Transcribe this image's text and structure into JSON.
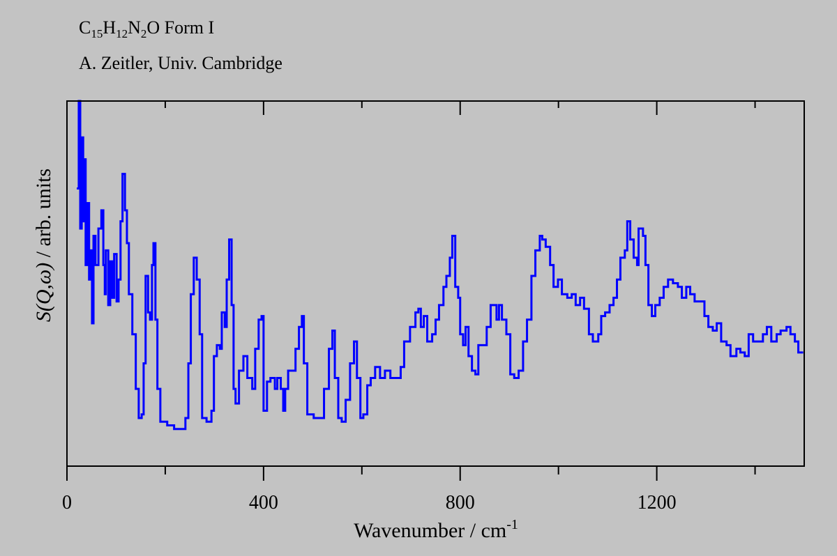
{
  "header": {
    "formula_parts": [
      "C",
      "15",
      "H",
      "12",
      "N",
      "2",
      "O Form I"
    ],
    "author": "A. Zeitler, Univ. Cambridge"
  },
  "colors": {
    "background": "#c3c3c3",
    "line": "#0000ff",
    "axis": "#000000"
  },
  "chart_data": {
    "type": "line",
    "title": "C15H12N2O Form I",
    "subtitle": "A. Zeitler, Univ. Cambridge",
    "xlabel": "Wavenumber / cm",
    "xlabel_sup": "-1",
    "ylabel_italic": "S(Q,ω)",
    "ylabel_rest": " / arb. units",
    "xlim": [
      0,
      1500
    ],
    "ylim": [
      0,
      100
    ],
    "xticks_major": [
      0,
      400,
      800,
      1200
    ],
    "xtick_labels": [
      "0",
      "400",
      "800",
      "1200"
    ],
    "xticks_minor": [
      200,
      600,
      1000,
      1400
    ],
    "grid": false,
    "series": [
      {
        "name": "S(Q,ω)",
        "x": [
          20,
          24,
          27,
          30,
          33,
          35,
          38,
          41,
          45,
          48,
          51,
          54,
          58,
          64,
          70,
          74,
          77,
          79,
          84,
          88,
          92,
          96,
          101,
          105,
          109,
          113,
          118,
          122,
          126,
          133,
          140,
          146,
          152,
          156,
          160,
          165,
          169,
          173,
          176,
          180,
          184,
          190,
          204,
          218,
          233,
          241,
          247,
          252,
          258,
          264,
          270,
          275,
          284,
          294,
          299,
          305,
          311,
          315,
          321,
          325,
          330,
          335,
          339,
          343,
          350,
          359,
          367,
          377,
          383,
          390,
          396,
          400,
          407,
          414,
          423,
          428,
          435,
          440,
          444,
          450,
          457,
          465,
          472,
          478,
          482,
          489,
          502,
          515,
          523,
          533,
          540,
          545,
          552,
          559,
          567,
          576,
          584,
          590,
          597,
          603,
          611,
          618,
          627,
          637,
          647,
          658,
          670,
          679,
          686,
          698,
          709,
          715,
          720,
          726,
          733,
          743,
          750,
          757,
          766,
          772,
          779,
          784,
          790,
          796,
          800,
          806,
          811,
          817,
          824,
          831,
          837,
          845,
          854,
          862,
          868,
          874,
          879,
          885,
          894,
          902,
          910,
          919,
          928,
          936,
          945,
          953,
          962,
          967,
          974,
          983,
          990,
          999,
          1007,
          1018,
          1027,
          1035,
          1044,
          1052,
          1062,
          1070,
          1081,
          1087,
          1095,
          1104,
          1112,
          1119,
          1126,
          1135,
          1140,
          1146,
          1153,
          1160,
          1163,
          1172,
          1177,
          1183,
          1190,
          1197,
          1206,
          1214,
          1223,
          1233,
          1243,
          1251,
          1260,
          1268,
          1277,
          1288,
          1297,
          1305,
          1314,
          1322,
          1331,
          1342,
          1350,
          1362,
          1370,
          1379,
          1387,
          1396,
          1407,
          1416,
          1424,
          1433,
          1444,
          1452,
          1464,
          1472,
          1481,
          1488,
          1498
        ],
        "y": [
          76,
          100,
          65,
          90,
          67,
          84,
          55,
          72,
          51,
          59,
          39,
          63,
          55,
          65,
          70,
          55,
          47,
          59,
          44,
          56,
          46,
          58,
          45,
          51,
          67,
          80,
          70,
          61,
          47,
          36,
          21,
          13,
          14,
          28,
          52,
          42,
          40,
          55,
          61,
          40,
          21,
          12,
          11,
          10,
          10,
          13,
          28,
          47,
          57,
          51,
          36,
          13,
          12,
          15,
          30,
          33,
          32,
          42,
          38,
          51,
          62,
          44,
          21,
          17,
          26,
          30,
          24,
          21,
          32,
          40,
          41,
          15,
          23,
          24,
          21,
          24,
          21,
          15,
          21,
          26,
          26,
          32,
          38,
          41,
          28,
          14,
          13,
          13,
          21,
          32,
          37,
          24,
          13,
          12,
          18,
          28,
          34,
          24,
          13,
          14,
          22,
          24,
          27,
          24,
          26,
          24,
          24,
          27,
          34,
          38,
          42,
          43,
          38,
          41,
          34,
          36,
          40,
          44,
          49,
          52,
          57,
          63,
          49,
          46,
          36,
          33,
          38,
          30,
          26,
          25,
          33,
          33,
          38,
          44,
          44,
          40,
          44,
          40,
          36,
          25,
          24,
          26,
          34,
          40,
          52,
          59,
          63,
          62,
          60,
          55,
          49,
          51,
          47,
          46,
          47,
          44,
          46,
          43,
          36,
          34,
          36,
          41,
          42,
          44,
          46,
          51,
          57,
          59,
          67,
          62,
          57,
          55,
          65,
          63,
          55,
          44,
          41,
          44,
          46,
          49,
          51,
          50,
          49,
          46,
          49,
          47,
          45,
          45,
          41,
          38,
          37,
          39,
          34,
          33,
          30,
          32,
          31,
          30,
          36,
          34,
          34,
          36,
          38,
          34,
          36,
          37,
          38,
          36,
          34,
          31,
          31
        ]
      }
    ]
  }
}
